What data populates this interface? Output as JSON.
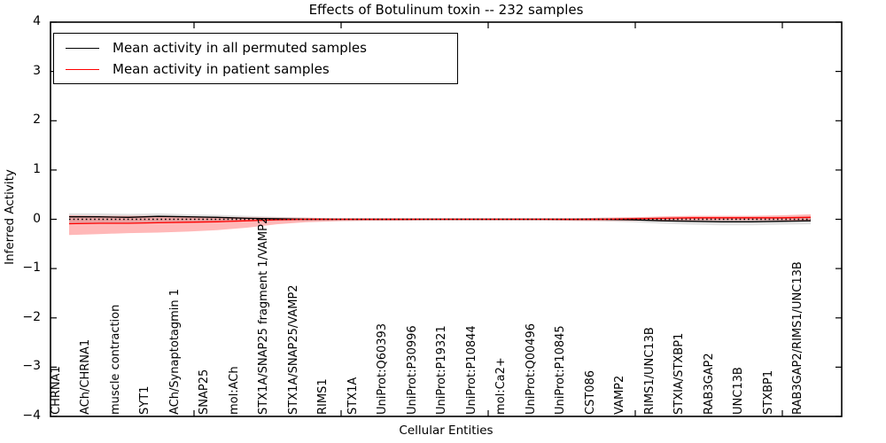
{
  "title": "Effects of Botulinum toxin -- 232 samples",
  "axes": {
    "ylabel": "Inferred Activity",
    "xlabel": "Cellular Entities",
    "yticks": [
      "4",
      "3",
      "2",
      "1",
      "0",
      "−1",
      "−2",
      "−3",
      "−4"
    ]
  },
  "legend": {
    "entries": [
      {
        "label": "Mean activity in all permuted samples",
        "color": "#000000"
      },
      {
        "label": "Mean activity in patient samples",
        "color": "#ff0000"
      }
    ]
  },
  "chart_data": {
    "type": "line",
    "title": "Effects of Botulinum toxin -- 232 samples",
    "xlabel": "Cellular Entities",
    "ylabel": "Inferred Activity",
    "ylim": [
      -4,
      4
    ],
    "grid": false,
    "legend_position": "upper left",
    "reference_line": {
      "y": 0,
      "style": "dotted",
      "color": "#000000"
    },
    "categories": [
      "CHRNA1",
      "ACh/CHRNA1",
      "muscle contraction",
      "SYT1",
      "ACh/Synaptotagmin 1",
      "SNAP25",
      "mol:ACh",
      "STX1A/SNAP25 fragment 1/VAMP2",
      "STX1A/SNAP25/VAMP2",
      "RIMS1",
      "STX1A",
      "UniProt:Q60393",
      "UniProt:P30996",
      "UniProt:P19321",
      "UniProt:P10844",
      "mol:Ca2+",
      "UniProt:Q00496",
      "UniProt:P10845",
      "CST086",
      "VAMP2",
      "RIMS1/UNC13B",
      "STXIA/STXBP1",
      "RAB3GAP2",
      "UNC13B",
      "STXBP1",
      "RAB3GAP2/RIMS1/UNC13B"
    ],
    "series": [
      {
        "name": "Mean activity in all permuted samples",
        "color": "#000000",
        "band_color": "#888888",
        "band_alpha": 0.25,
        "values": [
          0.05,
          0.05,
          0.04,
          0.06,
          0.05,
          0.04,
          0.02,
          0.01,
          0.0,
          0.0,
          0.0,
          0.0,
          0.0,
          0.0,
          0.0,
          0.0,
          0.0,
          0.0,
          0.0,
          -0.01,
          -0.03,
          -0.04,
          -0.05,
          -0.05,
          -0.04,
          -0.03
        ],
        "band_upper": [
          0.12,
          0.12,
          0.11,
          0.12,
          0.1,
          0.09,
          0.07,
          0.05,
          0.03,
          0.02,
          0.02,
          0.02,
          0.02,
          0.02,
          0.02,
          0.02,
          0.02,
          0.02,
          0.03,
          0.03,
          0.04,
          0.04,
          0.04,
          0.05,
          0.05,
          0.06
        ],
        "band_lower": [
          -0.1,
          -0.09,
          -0.08,
          -0.07,
          -0.06,
          -0.05,
          -0.04,
          -0.03,
          -0.03,
          -0.02,
          -0.02,
          -0.02,
          -0.02,
          -0.02,
          -0.02,
          -0.02,
          -0.02,
          -0.03,
          -0.04,
          -0.06,
          -0.09,
          -0.11,
          -0.12,
          -0.12,
          -0.11,
          -0.1
        ]
      },
      {
        "name": "Mean activity in patient samples",
        "color": "#ff0000",
        "band_color": "#ff0000",
        "band_alpha": 0.28,
        "values": [
          -0.09,
          -0.08,
          -0.08,
          -0.07,
          -0.06,
          -0.05,
          -0.03,
          -0.01,
          0.0,
          0.0,
          0.0,
          0.0,
          0.0,
          0.0,
          0.0,
          0.0,
          0.0,
          0.0,
          0.0,
          0.01,
          0.02,
          0.03,
          0.03,
          0.03,
          0.03,
          0.04
        ],
        "band_upper": [
          0.08,
          0.07,
          0.07,
          0.07,
          0.06,
          0.05,
          0.04,
          0.03,
          0.03,
          0.02,
          0.02,
          0.02,
          0.02,
          0.02,
          0.02,
          0.02,
          0.02,
          0.02,
          0.03,
          0.04,
          0.06,
          0.07,
          0.07,
          0.07,
          0.08,
          0.1
        ],
        "band_lower": [
          -0.32,
          -0.3,
          -0.28,
          -0.27,
          -0.25,
          -0.22,
          -0.17,
          -0.1,
          -0.06,
          -0.04,
          -0.03,
          -0.03,
          -0.02,
          -0.02,
          -0.02,
          -0.02,
          -0.02,
          -0.03,
          -0.03,
          -0.03,
          -0.02,
          -0.02,
          -0.02,
          -0.02,
          -0.02,
          -0.04
        ]
      }
    ]
  }
}
